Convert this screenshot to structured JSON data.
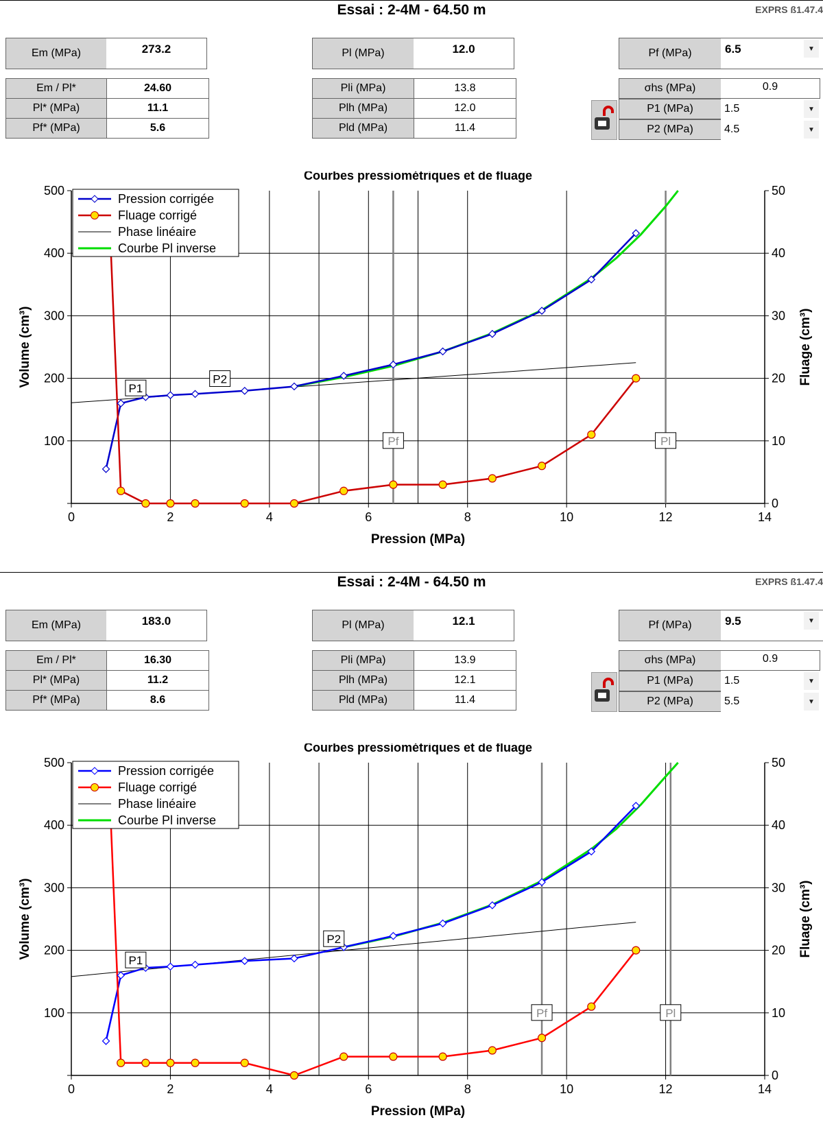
{
  "panels": [
    {
      "title": "Essai : 2-4M - 64.50 m",
      "version": "EXPRS ß1.47.4",
      "params": {
        "em": {
          "label": "Em (MPa)",
          "value": "273.2"
        },
        "pl": {
          "label": "Pl (MPa)",
          "value": "12.0"
        },
        "pf": {
          "label": "Pf (MPa)",
          "value": "6.5"
        },
        "em_pl": {
          "label": "Em / Pl*",
          "value": "24.60"
        },
        "pl_star": {
          "label": "Pl* (MPa)",
          "value": "11.1"
        },
        "pf_star": {
          "label": "Pf* (MPa)",
          "value": "5.6"
        },
        "pli": {
          "label": "Pli (MPa)",
          "value": "13.8"
        },
        "plh": {
          "label": "Plh (MPa)",
          "value": "12.0"
        },
        "pld": {
          "label": "Pld (MPa)",
          "value": "11.4"
        },
        "ohs": {
          "label": "σhs (MPa)",
          "value": "0.9"
        },
        "p1": {
          "label": "P1 (MPa)",
          "value": "1.5"
        },
        "p2": {
          "label": "P2 (MPa)",
          "value": "4.5"
        }
      },
      "chart_data": {
        "type": "line",
        "title": "Courbes pressiométriques et de fluage",
        "xlabel": "Pression (MPa)",
        "ylabel": "Volume (cm³)",
        "y2label": "Fluage (cm³)",
        "xlim": [
          0,
          14
        ],
        "ylim": [
          0,
          500
        ],
        "y2lim": [
          0,
          50
        ],
        "xticks": [
          0,
          2,
          4,
          6,
          8,
          10,
          12,
          14
        ],
        "yticks": [
          0,
          100,
          200,
          300,
          400,
          500
        ],
        "y2ticks": [
          0,
          10,
          20,
          30,
          40,
          50
        ],
        "grid": true,
        "legend_position": "top-left",
        "legend": [
          "Pression corrigée",
          "Fluage corrigé",
          "Phase linéaire",
          "Courbe Pl inverse"
        ],
        "series": [
          {
            "name": "Pression corrigée",
            "color": "#0000cc",
            "marker": "diamond",
            "x": [
              0.7,
              1.0,
              1.5,
              2.0,
              2.5,
              3.5,
              4.5,
              5.5,
              6.5,
              7.5,
              8.5,
              9.5,
              10.5,
              11.4
            ],
            "y": [
              55,
              160,
              170,
              173,
              175,
              180,
              187,
              204,
              222,
              243,
              271,
              308,
              358,
              432
            ]
          },
          {
            "name": "Fluage corrigé",
            "color": "#cc0000",
            "marker": "circle",
            "axis": "right",
            "x": [
              1.0,
              1.5,
              2.0,
              2.5,
              3.5,
              4.5,
              5.5,
              6.5,
              7.5,
              8.5,
              9.5,
              10.5,
              11.4
            ],
            "y": [
              2,
              0,
              0,
              0,
              0,
              0,
              2,
              3,
              3,
              4,
              6,
              11,
              20
            ]
          },
          {
            "name": "Phase linéaire",
            "color": "#000000",
            "x": [
              0.0,
              11.4
            ],
            "y": [
              161,
              225
            ]
          },
          {
            "name": "Courbe Pl inverse",
            "color": "#00dd00",
            "x": [
              4.5,
              5.5,
              6.5,
              7.5,
              8.5,
              9.5,
              10.5,
              11.0,
              11.5,
              12.0,
              12.25
            ],
            "y": [
              187,
              202,
              220,
              243,
              272,
              309,
              360,
              392,
              430,
              475,
              500
            ]
          }
        ],
        "creep_initial": {
          "x": [
            0.8,
            1.0
          ],
          "y": [
            40,
            2
          ]
        },
        "markers": [
          {
            "label": "P1",
            "x": 1.3,
            "y": 184
          },
          {
            "label": "P2",
            "x": 3.0,
            "y": 199
          },
          {
            "label": "Pf",
            "x": 6.5,
            "y": 100,
            "vline": true
          },
          {
            "label": "Pl",
            "x": 12.0,
            "y": 100,
            "vline": true
          }
        ]
      }
    },
    {
      "title": "Essai : 2-4M - 64.50 m",
      "version": "EXPRS ß1.47.4",
      "params": {
        "em": {
          "label": "Em (MPa)",
          "value": "183.0"
        },
        "pl": {
          "label": "Pl (MPa)",
          "value": "12.1"
        },
        "pf": {
          "label": "Pf (MPa)",
          "value": "9.5"
        },
        "em_pl": {
          "label": "Em / Pl*",
          "value": "16.30"
        },
        "pl_star": {
          "label": "Pl* (MPa)",
          "value": "11.2"
        },
        "pf_star": {
          "label": "Pf* (MPa)",
          "value": "8.6"
        },
        "pli": {
          "label": "Pli (MPa)",
          "value": "13.9"
        },
        "plh": {
          "label": "Plh (MPa)",
          "value": "12.1"
        },
        "pld": {
          "label": "Pld (MPa)",
          "value": "11.4"
        },
        "ohs": {
          "label": "σhs (MPa)",
          "value": "0.9"
        },
        "p1": {
          "label": "P1 (MPa)",
          "value": "1.5"
        },
        "p2": {
          "label": "P2 (MPa)",
          "value": "5.5"
        }
      },
      "chart_data": {
        "type": "line",
        "title": "Courbes pressiométriques et de fluage",
        "xlabel": "Pression (MPa)",
        "ylabel": "Volume (cm³)",
        "y2label": "Fluage (cm³)",
        "xlim": [
          0,
          14
        ],
        "ylim": [
          0,
          500
        ],
        "y2lim": [
          0,
          50
        ],
        "xticks": [
          0,
          2,
          4,
          6,
          8,
          10,
          12,
          14
        ],
        "yticks": [
          0,
          100,
          200,
          300,
          400,
          500
        ],
        "y2ticks": [
          0,
          10,
          20,
          30,
          40,
          50
        ],
        "grid": true,
        "legend_position": "top-left",
        "legend": [
          "Pression corrigée",
          "Fluage corrigé",
          "Phase linéaire",
          "Courbe Pl inverse"
        ],
        "series": [
          {
            "name": "Pression corrigée",
            "color": "#0000ff",
            "marker": "diamond",
            "x": [
              0.7,
              1.0,
              1.5,
              2.0,
              2.5,
              3.5,
              4.5,
              5.5,
              6.5,
              7.5,
              8.5,
              9.5,
              10.5,
              11.4
            ],
            "y": [
              55,
              160,
              172,
              174,
              177,
              183,
              187,
              205,
              223,
              243,
              272,
              309,
              358,
              431
            ]
          },
          {
            "name": "Fluage corrigé",
            "color": "#ff0000",
            "marker": "circle",
            "axis": "right",
            "x": [
              1.0,
              1.5,
              2.0,
              2.5,
              3.5,
              4.5,
              5.5,
              6.5,
              7.5,
              8.5,
              9.5,
              10.5,
              11.4
            ],
            "y": [
              2,
              2,
              2,
              2,
              2,
              0,
              3,
              3,
              3,
              4,
              6,
              11,
              20
            ]
          },
          {
            "name": "Phase linéaire",
            "color": "#000000",
            "x": [
              0.0,
              11.4
            ],
            "y": [
              158,
              245
            ]
          },
          {
            "name": "Courbe Pl inverse",
            "color": "#00dd00",
            "x": [
              5.5,
              6.5,
              7.5,
              8.5,
              9.5,
              10.5,
              11.0,
              11.5,
              12.0,
              12.25
            ],
            "y": [
              205,
              222,
              244,
              273,
              311,
              362,
              394,
              433,
              478,
              500
            ]
          }
        ],
        "creep_initial": {
          "x": [
            0.8,
            1.0
          ],
          "y": [
            40,
            2
          ]
        },
        "markers": [
          {
            "label": "P1",
            "x": 1.3,
            "y": 184
          },
          {
            "label": "P2",
            "x": 5.3,
            "y": 218
          },
          {
            "label": "Pf",
            "x": 9.5,
            "y": 100,
            "vline": true
          },
          {
            "label": "Pl",
            "x": 12.1,
            "y": 100,
            "vline": true
          }
        ]
      }
    }
  ]
}
